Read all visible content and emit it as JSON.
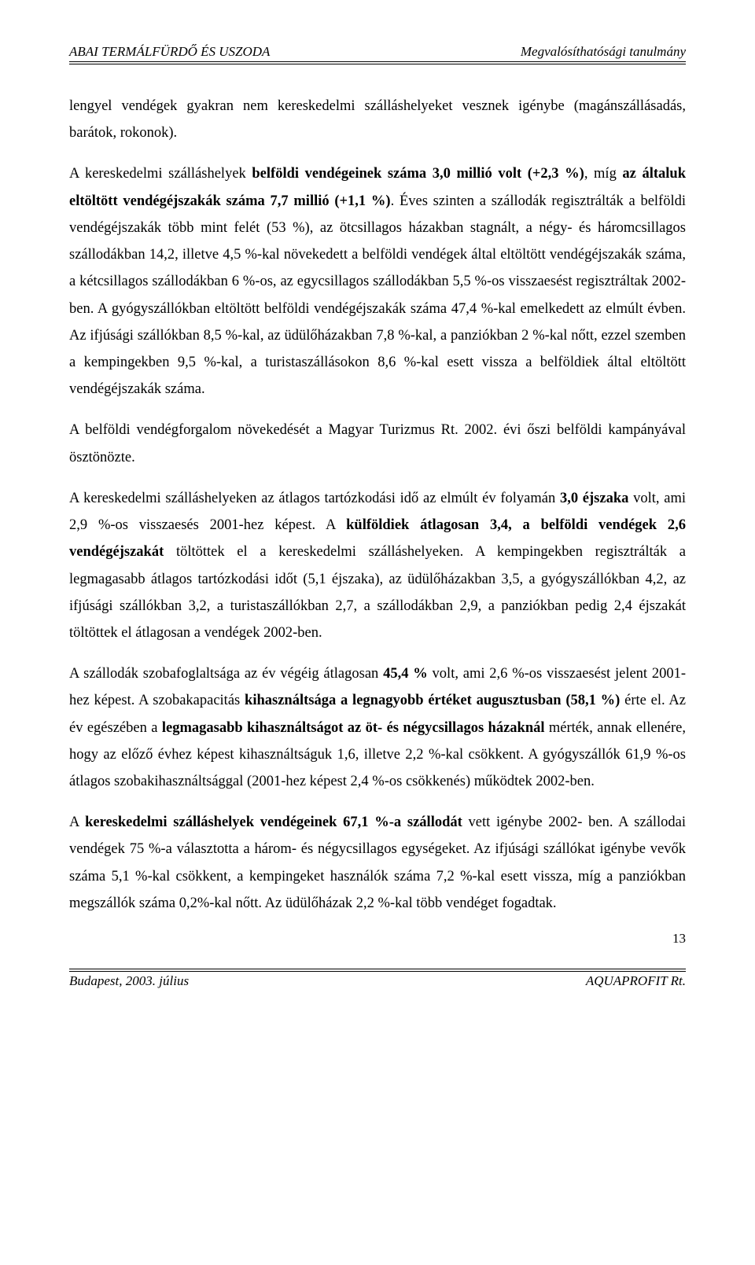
{
  "header": {
    "left": "ABAI TERMÁLFÜRDŐ ÉS USZODA",
    "right": "Megvalósíthatósági tanulmány"
  },
  "paragraphs": {
    "p1a": "lengyel vendégek gyakran nem kereskedelmi szálláshelyeket vesznek igénybe (magánszállásadás, barátok, rokonok).",
    "p2_pre": "A kereskedelmi szálláshelyek ",
    "p2_b1": "belföldi vendégeinek száma 3,0 millió volt (+2,3 %)",
    "p2_mid1": ", míg ",
    "p2_b2": "az általuk eltöltött vendégéjszakák száma 7,7 millió (+1,1 %)",
    "p2_post": ". Éves szinten a szállodák regisztrálták a belföldi vendégéjszakák több mint felét (53 %), az ötcsillagos házakban stagnált, a négy- és háromcsillagos szállodákban 14,2, illetve 4,5 %-kal növekedett a belföldi vendégek által eltöltött vendégéjszakák száma, a kétcsillagos szállodákban 6 %-os, az egycsillagos szállodákban 5,5 %-os visszaesést regisztráltak 2002-ben. A gyógyszállókban eltöltött belföldi vendégéjszakák száma 47,4 %-kal emelkedett az elmúlt évben. Az ifjúsági szállókban 8,5 %-kal, az üdülőházakban 7,8 %-kal, a panziókban 2 %-kal nőtt, ezzel szemben a kempingekben 9,5 %-kal, a turistaszállásokon 8,6 %-kal esett vissza a belföldiek által eltöltött vendégéjszakák száma.",
    "p3": "A belföldi vendégforgalom növekedését a Magyar Turizmus Rt. 2002. évi őszi belföldi kampányával ösztönözte.",
    "p4_pre": "A kereskedelmi szálláshelyeken az átlagos tartózkodási idő az elmúlt év folyamán ",
    "p4_b1": "3,0 éjszaka",
    "p4_mid1": " volt, ami 2,9 %-os visszaesés 2001-hez képest. A ",
    "p4_b2": "külföldiek átlagosan 3,4, a belföldi vendégek 2,6 vendégéjszakát",
    "p4_post": " töltöttek el a kereskedelmi szálláshelyeken. A kempingekben regisztrálták a legmagasabb átlagos tartózkodási időt (5,1 éjszaka), az üdülőházakban 3,5, a gyógyszállókban 4,2, az ifjúsági szállókban 3,2, a turistaszállókban 2,7, a szállodákban 2,9, a panziókban pedig 2,4 éjszakát töltöttek el átlagosan a vendégek 2002-ben.",
    "p5_pre": "A szállodák szobafoglaltsága az év végéig átlagosan ",
    "p5_b1": "45,4 %",
    "p5_mid1": " volt, ami 2,6 %-os visszaesést jelent 2001-hez képest. A szobakapacitás ",
    "p5_b2": "kihasználtsága a legnagyobb értéket augusztusban (58,1 %)",
    "p5_mid2": " érte el. Az év egészében a ",
    "p5_b3": "legmagasabb kihasználtságot az öt- és négycsillagos házaknál",
    "p5_post": " mérték, annak ellenére, hogy az előző évhez képest kihasználtságuk 1,6, illetve 2,2 %-kal csökkent. A gyógyszállók 61,9 %-os átlagos szobakihasználtsággal (2001-hez képest 2,4 %-os csökkenés) működtek 2002-ben.",
    "p6_pre": "A ",
    "p6_b1": "kereskedelmi szálláshelyek vendégeinek 67,1 %-a szállodát",
    "p6_post": " vett igénybe 2002- ben. A szállodai vendégek 75 %-a választotta a három- és négycsillagos egységeket. Az ifjúsági szállókat igénybe vevők száma 5,1 %-kal csökkent, a kempingeket használók száma 7,2 %-kal esett vissza, míg a panziókban megszállók száma 0,2%-kal nőtt. Az üdülőházak 2,2 %-kal több vendéget fogadtak."
  },
  "footer": {
    "left": "Budapest, 2003. július",
    "right": "AQUAPROFIT Rt.",
    "page": "13"
  }
}
